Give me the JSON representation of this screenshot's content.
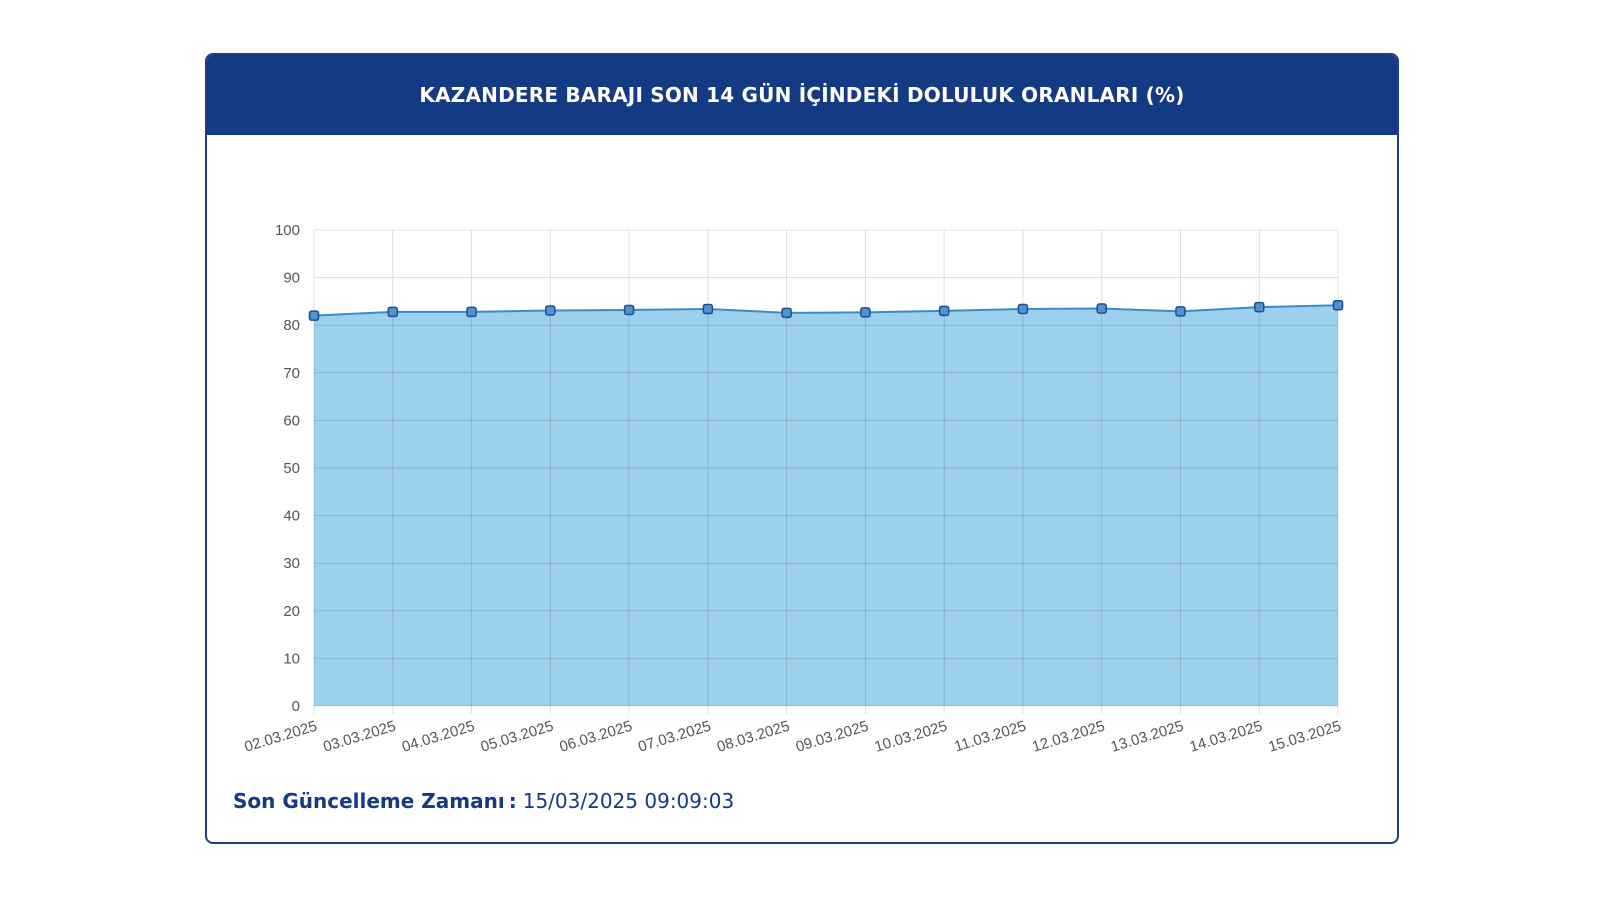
{
  "card": {
    "title": "KAZANDERE BARAJI SON 14 GÜN İÇİNDEKİ DOLULUK ORANLARI (%)"
  },
  "footer": {
    "label": "Son Güncelleme Zamanı",
    "separator": ":",
    "value": "15/03/2025 09:09:03"
  },
  "colors": {
    "header_bg": "#133a82",
    "area_fill": "#9dd0ec",
    "line": "#3b8cc7",
    "point_fill": "#4f93d4",
    "point_stroke": "#1d4e8a"
  },
  "chart_data": {
    "type": "area",
    "title": "KAZANDERE BARAJI SON 14 GÜN İÇİNDEKİ DOLULUK ORANLARI (%)",
    "xlabel": "",
    "ylabel": "",
    "ylim": [
      0,
      100
    ],
    "yticks": [
      0,
      10,
      20,
      30,
      40,
      50,
      60,
      70,
      80,
      90,
      100
    ],
    "grid": true,
    "legend": "none",
    "categories": [
      "02.03.2025",
      "03.03.2025",
      "04.03.2025",
      "05.03.2025",
      "06.03.2025",
      "07.03.2025",
      "08.03.2025",
      "09.03.2025",
      "10.03.2025",
      "11.03.2025",
      "12.03.2025",
      "13.03.2025",
      "14.03.2025",
      "15.03.2025"
    ],
    "series": [
      {
        "values": [
          82.0,
          82.8,
          82.8,
          83.1,
          83.2,
          83.4,
          82.6,
          82.7,
          83.0,
          83.4,
          83.5,
          82.9,
          83.8,
          84.2
        ]
      }
    ]
  }
}
